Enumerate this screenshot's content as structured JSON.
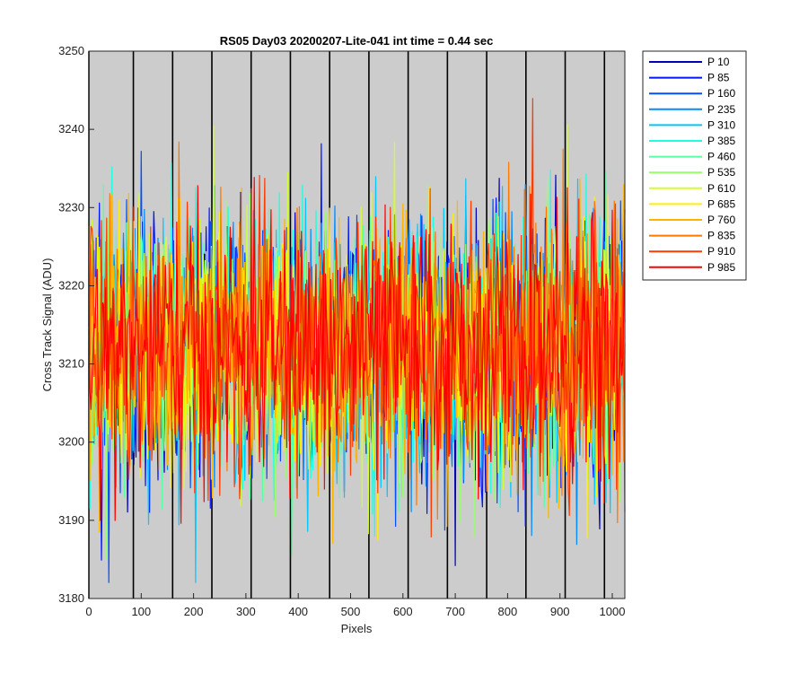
{
  "chart_data": {
    "type": "line",
    "title": "RS05 Day03 20200207-Lite-041 int time = 0.44 sec",
    "xlabel": "Pixels",
    "ylabel": "Cross Track Signal (ADU)",
    "xlim": [
      0,
      1024
    ],
    "ylim": [
      3180,
      3250
    ],
    "xticks": [
      0,
      100,
      200,
      300,
      400,
      500,
      600,
      700,
      800,
      900,
      1000
    ],
    "yticks": [
      3180,
      3190,
      3200,
      3210,
      3220,
      3230,
      3240,
      3250
    ],
    "grid": false,
    "background": "#cccccc",
    "vertical_markers": [
      0,
      85,
      160,
      235,
      310,
      385,
      460,
      535,
      610,
      685,
      760,
      835,
      910,
      985
    ],
    "marker_color": "#000000",
    "legend_position": "outside-right-top",
    "baseline_mean": 3212,
    "noise_std": 8,
    "series": [
      {
        "name": "P 10",
        "color": "#0000b4"
      },
      {
        "name": "P 85",
        "color": "#0016ff"
      },
      {
        "name": "P 160",
        "color": "#0050ff"
      },
      {
        "name": "P 235",
        "color": "#008cff"
      },
      {
        "name": "P 310",
        "color": "#00c8ff"
      },
      {
        "name": "P 385",
        "color": "#1effe1"
      },
      {
        "name": "P 460",
        "color": "#5affa5"
      },
      {
        "name": "P 535",
        "color": "#96ff69"
      },
      {
        "name": "P 610",
        "color": "#d2ff2d"
      },
      {
        "name": "P 685",
        "color": "#fff000"
      },
      {
        "name": "P 760",
        "color": "#ffb400"
      },
      {
        "name": "P 835",
        "color": "#ff7800"
      },
      {
        "name": "P 910",
        "color": "#ff3c00"
      },
      {
        "name": "P 985",
        "color": "#ff0000"
      }
    ]
  }
}
